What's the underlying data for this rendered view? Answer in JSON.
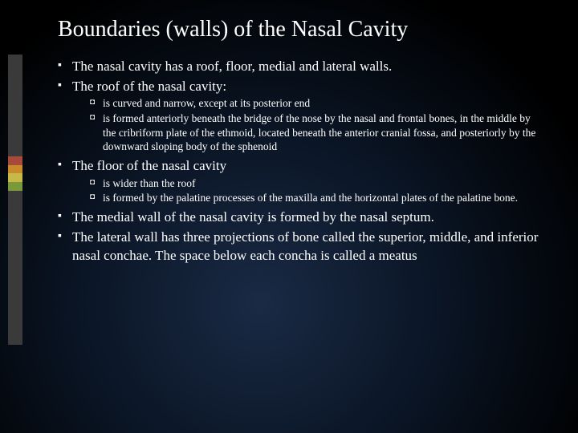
{
  "title": "Boundaries (walls) of the Nasal Cavity",
  "accent_colors": [
    "#3a3a3a",
    "#a84a3a",
    "#c98a2a",
    "#c7b84a",
    "#7a9a3a",
    "#3a3a3a"
  ],
  "accent_heights": [
    0.35,
    0.03,
    0.03,
    0.03,
    0.03,
    0.53
  ],
  "bullets": [
    {
      "text": "The nasal cavity has a roof, floor,  medial and lateral walls."
    },
    {
      "text": "The roof of the nasal cavity:",
      "sub": [
        " is curved and narrow, except at its posterior end",
        "is formed anteriorly beneath the bridge of the nose by the nasal and frontal bones, in the middle by the cribriform plate of the ethmoid, located beneath the anterior cranial fossa, and posteriorly by the downward sloping body of the sphenoid"
      ]
    },
    {
      "text": "The floor of the nasal cavity",
      "sub": [
        " is wider than the roof",
        "is formed by the palatine processes of the maxilla and the horizontal plates of the palatine bone."
      ]
    },
    {
      "text": "The medial wall of the nasal cavity is formed by the nasal septum."
    },
    {
      "text": "The lateral wall has three projections of bone called the superior, middle, and inferior nasal conchae. The space below each concha is called a meatus"
    }
  ]
}
